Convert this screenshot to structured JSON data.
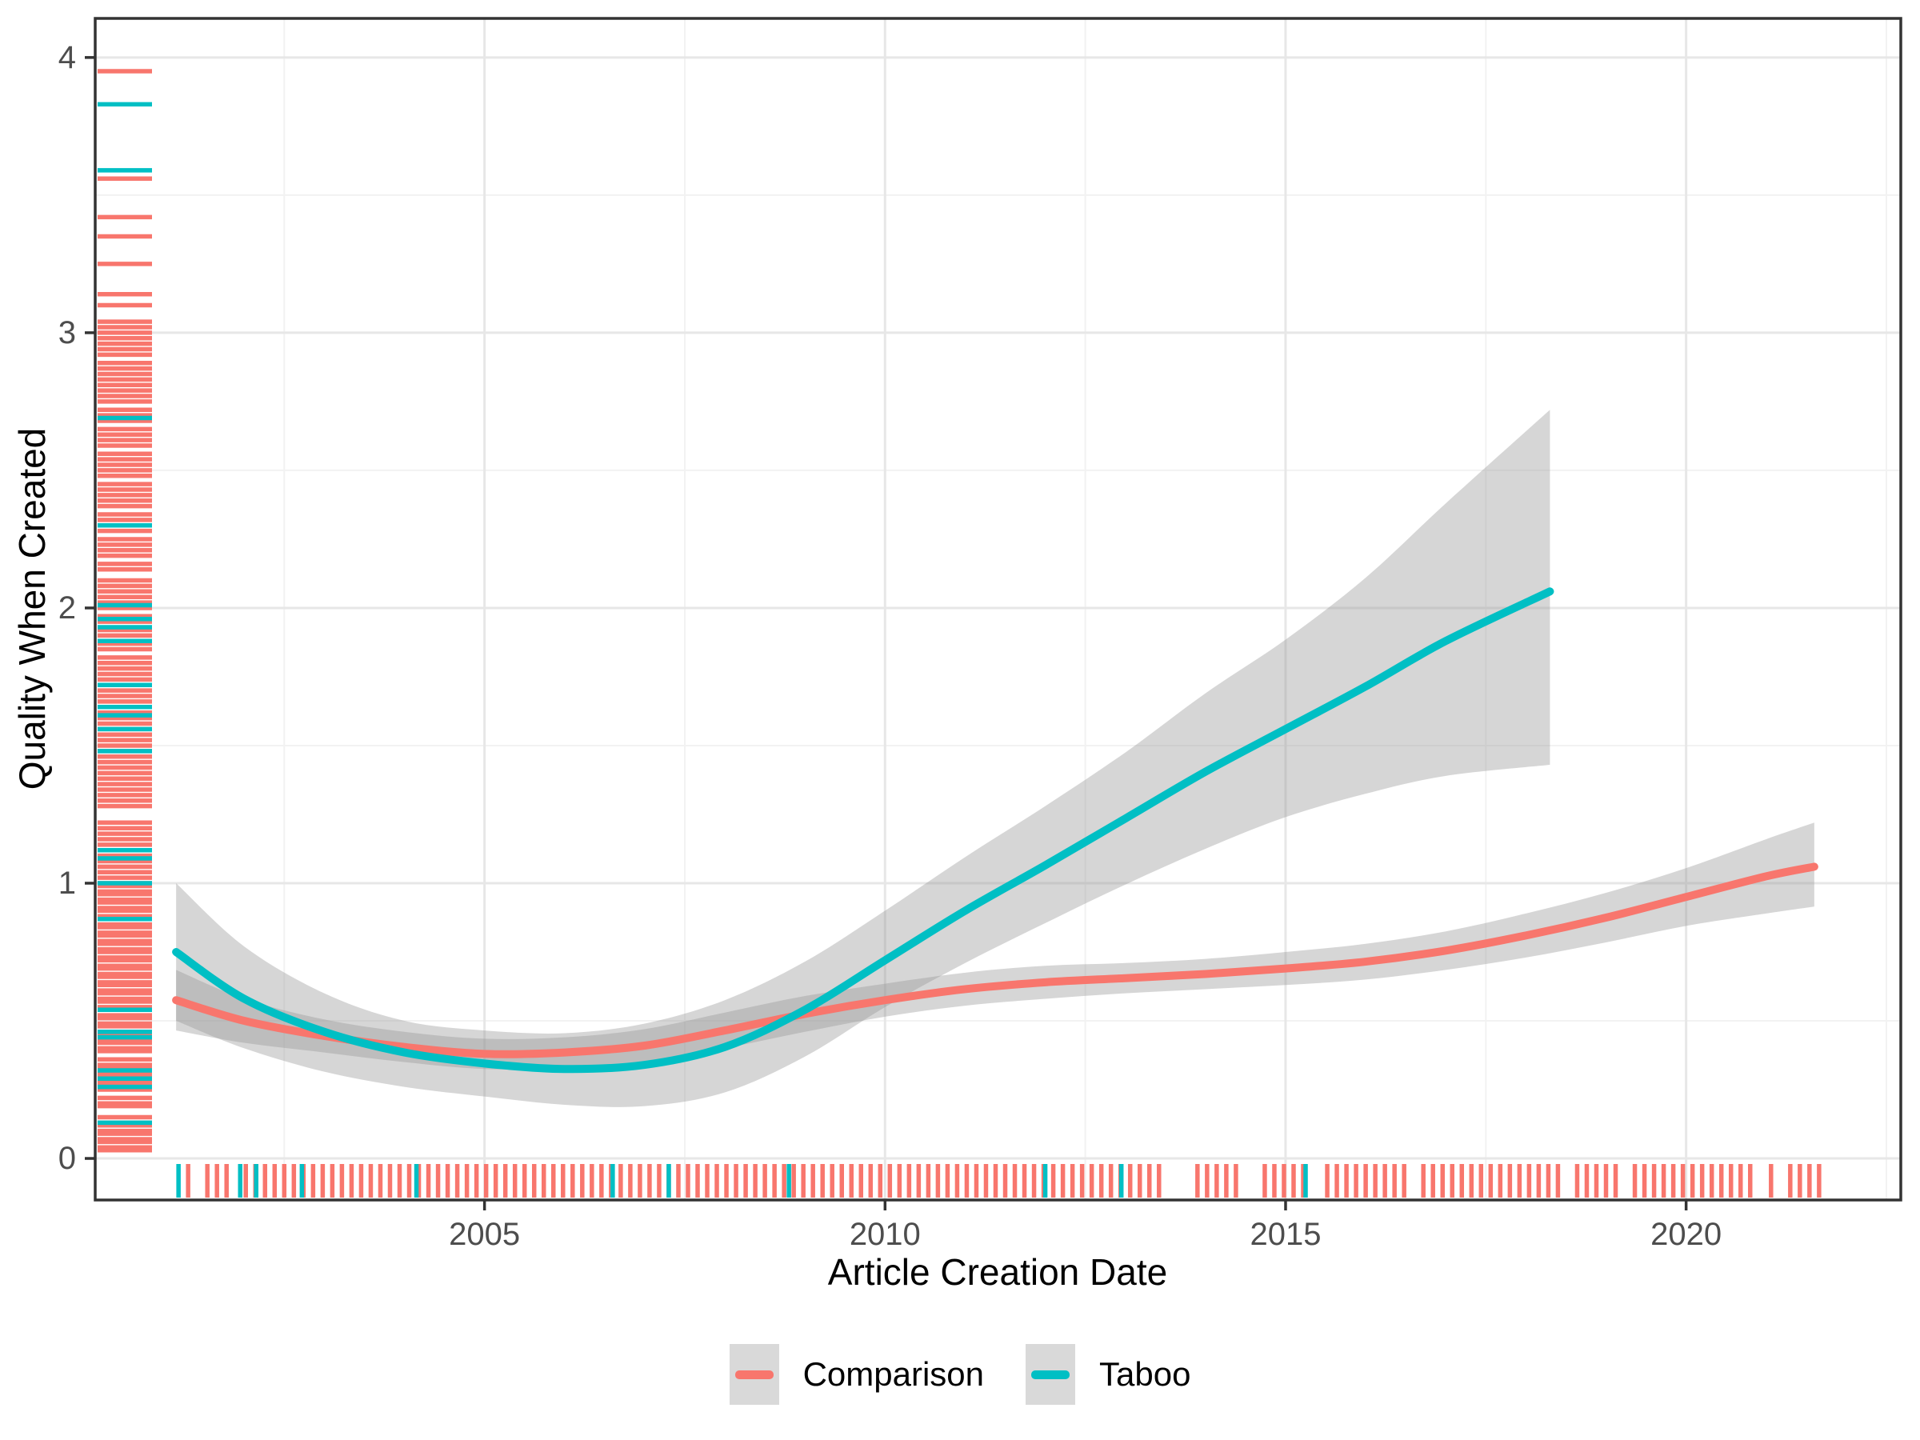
{
  "figure": {
    "background": "#FFFFFF"
  },
  "axes": {
    "x": {
      "label": "Article Creation Date",
      "ticks": [
        "2005",
        "2010",
        "2015",
        "2020"
      ],
      "tick_values": [
        2005,
        2010,
        2015,
        2020
      ],
      "minor_ticks": [
        2002.5,
        2007.5,
        2012.5,
        2017.5,
        2022.5
      ]
    },
    "y": {
      "label": "Quality When Created",
      "ticks": [
        "0",
        "1",
        "2",
        "3",
        "4"
      ],
      "tick_values": [
        0,
        1,
        2,
        3,
        4
      ],
      "minor_ticks": [
        0.5,
        1.5,
        2.5,
        3.5
      ]
    }
  },
  "legend": {
    "position": "bottom",
    "key_fill": "#D9D9D9",
    "items": [
      {
        "label": "Comparison",
        "color": "#F8766D"
      },
      {
        "label": "Taboo",
        "color": "#00BFC4"
      }
    ]
  },
  "chart_data": {
    "type": "line",
    "title": "",
    "xlabel": "Article Creation Date",
    "ylabel": "Quality When Created",
    "x_range": [
      2000.14,
      2022.68
    ],
    "y_range": [
      -0.151,
      4.142
    ],
    "grid": "on",
    "legend_position": "bottom",
    "colors": {
      "grid_major": "#E7E7E7",
      "grid_minor": "#F2F2F2",
      "panel_border": "#333333",
      "tick_mark": "#333333",
      "tick_label": "#4D4D4D",
      "ribbon": "#999999",
      "ribbon_opacity": 0.4
    },
    "series": [
      {
        "name": "Comparison",
        "color": "#F8766D",
        "x": [
          2001.15,
          2002,
          2003,
          2004,
          2005,
          2006,
          2007,
          2008,
          2009,
          2010,
          2011,
          2012,
          2013,
          2014,
          2015,
          2016,
          2017,
          2018,
          2019,
          2020,
          2021,
          2021.6
        ],
        "y": [
          0.575,
          0.5,
          0.445,
          0.405,
          0.38,
          0.385,
          0.41,
          0.465,
          0.525,
          0.575,
          0.615,
          0.64,
          0.655,
          0.67,
          0.69,
          0.715,
          0.755,
          0.81,
          0.875,
          0.95,
          1.025,
          1.06
        ],
        "ci_lower": [
          0.465,
          0.42,
          0.385,
          0.35,
          0.325,
          0.33,
          0.35,
          0.4,
          0.46,
          0.515,
          0.555,
          0.58,
          0.6,
          0.615,
          0.63,
          0.65,
          0.685,
          0.73,
          0.785,
          0.845,
          0.89,
          0.915
        ],
        "ci_upper": [
          0.685,
          0.58,
          0.505,
          0.46,
          0.435,
          0.44,
          0.47,
          0.53,
          0.59,
          0.635,
          0.675,
          0.7,
          0.71,
          0.725,
          0.75,
          0.78,
          0.825,
          0.89,
          0.965,
          1.055,
          1.16,
          1.22
        ]
      },
      {
        "name": "Taboo",
        "color": "#00BFC4",
        "x": [
          2001.15,
          2002,
          2003,
          2004,
          2005,
          2006,
          2007,
          2008,
          2009,
          2010,
          2011,
          2012,
          2013,
          2014,
          2015,
          2016,
          2017,
          2018.3
        ],
        "y": [
          0.75,
          0.58,
          0.46,
          0.385,
          0.345,
          0.325,
          0.34,
          0.405,
          0.54,
          0.72,
          0.9,
          1.065,
          1.235,
          1.405,
          1.56,
          1.715,
          1.88,
          2.06
        ],
        "ci_lower": [
          0.5,
          0.4,
          0.315,
          0.26,
          0.225,
          0.195,
          0.19,
          0.24,
          0.37,
          0.55,
          0.71,
          0.855,
          0.995,
          1.125,
          1.24,
          1.325,
          1.39,
          1.43
        ],
        "ci_upper": [
          1.0,
          0.77,
          0.6,
          0.5,
          0.465,
          0.455,
          0.49,
          0.575,
          0.715,
          0.9,
          1.095,
          1.28,
          1.475,
          1.69,
          1.885,
          2.11,
          2.38,
          2.72
        ]
      }
    ],
    "rugs": {
      "y_axis": {
        "comparison": [
          3.95,
          3.56,
          3.42,
          3.35,
          3.25,
          3.14,
          3.1,
          3.04,
          3.02,
          3.0,
          2.98,
          2.96,
          2.94,
          2.92,
          2.89,
          2.87,
          2.85,
          2.83,
          2.81,
          2.79,
          2.77,
          2.75,
          2.72,
          2.7,
          2.68,
          2.65,
          2.63,
          2.61,
          2.59,
          2.56,
          2.54,
          2.52,
          2.5,
          2.48,
          2.45,
          2.43,
          2.41,
          2.39,
          2.37,
          2.34,
          2.32,
          2.3,
          2.28,
          2.25,
          2.23,
          2.21,
          2.19,
          2.16,
          2.14,
          2.1,
          2.08,
          2.06,
          2.04,
          2.02,
          2.0,
          1.97,
          1.95,
          1.92,
          1.9,
          1.87,
          1.85,
          1.82,
          1.8,
          1.78,
          1.76,
          1.74,
          1.72,
          1.7,
          1.68,
          1.66,
          1.64,
          1.62,
          1.6,
          1.58,
          1.56,
          1.54,
          1.52,
          1.5,
          1.48,
          1.46,
          1.44,
          1.42,
          1.4,
          1.38,
          1.36,
          1.34,
          1.32,
          1.3,
          1.28,
          1.22,
          1.2,
          1.18,
          1.16,
          1.14,
          1.12,
          1.1,
          1.08,
          1.06,
          1.04,
          1.02,
          1.0,
          0.99,
          0.97,
          0.96,
          0.94,
          0.93,
          0.91,
          0.9,
          0.88,
          0.87,
          0.85,
          0.84,
          0.82,
          0.81,
          0.79,
          0.78,
          0.76,
          0.75,
          0.73,
          0.72,
          0.7,
          0.69,
          0.67,
          0.66,
          0.64,
          0.63,
          0.61,
          0.6,
          0.58,
          0.57,
          0.55,
          0.54,
          0.52,
          0.51,
          0.49,
          0.48,
          0.46,
          0.45,
          0.43,
          0.42,
          0.4,
          0.39,
          0.36,
          0.34,
          0.33,
          0.31,
          0.3,
          0.28,
          0.27,
          0.25,
          0.22,
          0.2,
          0.19,
          0.15,
          0.13,
          0.12,
          0.1,
          0.09,
          0.07,
          0.06,
          0.04,
          0.03
        ],
        "taboo": [
          3.83,
          3.59,
          2.69,
          2.3,
          2.01,
          1.96,
          1.93,
          1.88,
          1.72,
          1.64,
          1.61,
          1.56,
          1.48,
          1.12,
          1.09,
          1.0,
          0.87,
          0.54,
          0.46,
          0.44,
          0.32,
          0.29,
          0.26,
          0.13
        ]
      },
      "x_axis": {
        "comparison": [
          2001.3,
          2001.54,
          2001.66,
          2001.78,
          2002.02,
          2002.14,
          2002.26,
          2002.38,
          2002.5,
          2002.62,
          2002.74,
          2002.86,
          2002.98,
          2003.1,
          2003.22,
          2003.34,
          2003.46,
          2003.58,
          2003.7,
          2003.82,
          2003.94,
          2004.06,
          2004.18,
          2004.3,
          2004.42,
          2004.54,
          2004.66,
          2004.78,
          2004.9,
          2005.02,
          2005.14,
          2005.26,
          2005.38,
          2005.5,
          2005.62,
          2005.74,
          2005.86,
          2005.98,
          2006.1,
          2006.22,
          2006.34,
          2006.46,
          2006.58,
          2006.7,
          2006.82,
          2006.94,
          2007.06,
          2007.18,
          2007.3,
          2007.42,
          2007.54,
          2007.66,
          2007.78,
          2007.9,
          2008.02,
          2008.14,
          2008.26,
          2008.38,
          2008.5,
          2008.62,
          2008.74,
          2008.86,
          2008.98,
          2009.1,
          2009.22,
          2009.34,
          2009.46,
          2009.58,
          2009.7,
          2009.82,
          2009.94,
          2010.06,
          2010.18,
          2010.3,
          2010.42,
          2010.54,
          2010.66,
          2010.78,
          2010.9,
          2011.02,
          2011.14,
          2011.26,
          2011.38,
          2011.5,
          2011.62,
          2011.74,
          2011.86,
          2011.98,
          2012.1,
          2012.22,
          2012.34,
          2012.46,
          2012.58,
          2012.7,
          2012.82,
          2012.94,
          2013.06,
          2013.18,
          2013.3,
          2013.42,
          2013.9,
          2014.02,
          2014.14,
          2014.26,
          2014.38,
          2014.74,
          2014.86,
          2014.98,
          2015.1,
          2015.22,
          2015.52,
          2015.64,
          2015.76,
          2015.88,
          2016.0,
          2016.12,
          2016.24,
          2016.36,
          2016.48,
          2016.72,
          2016.84,
          2016.96,
          2017.08,
          2017.2,
          2017.32,
          2017.44,
          2017.56,
          2017.68,
          2017.8,
          2017.92,
          2018.04,
          2018.16,
          2018.28,
          2018.4,
          2018.64,
          2018.76,
          2018.88,
          2019.0,
          2019.12,
          2019.36,
          2019.48,
          2019.6,
          2019.72,
          2019.84,
          2019.96,
          2020.08,
          2020.2,
          2020.32,
          2020.44,
          2020.56,
          2020.68,
          2020.8,
          2021.06,
          2021.3,
          2021.42,
          2021.54,
          2021.66
        ],
        "taboo": [
          2001.18,
          2001.95,
          2002.15,
          2002.72,
          2004.15,
          2006.6,
          2007.3,
          2008.8,
          2012.0,
          2012.95,
          2015.25
        ]
      }
    }
  }
}
